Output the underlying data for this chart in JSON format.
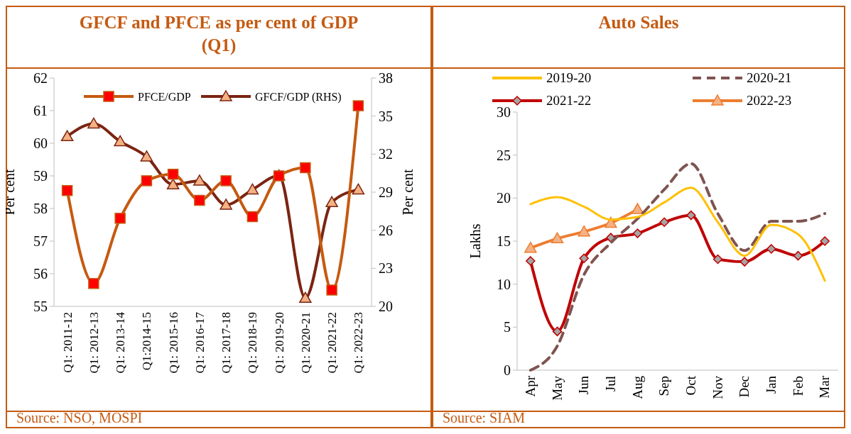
{
  "chart_data": [
    {
      "type": "line",
      "title": "GFCF and PFCE as per cent of GDP (Q1)",
      "ylabel": "Per cent",
      "y2label": "Per cent",
      "categories": [
        "Q1: 2011-12",
        "Q1: 2012-13",
        "Q1: 2013-14",
        "Q1:2014-15",
        "Q1: 2015-16",
        "Q1: 2016-17",
        "Q1: 2017-18",
        "Q1: 2018-19",
        "Q1: 2019-20",
        "Q1: 2020-21",
        "Q1: 2021-22",
        "Q1: 2022-23"
      ],
      "series": [
        {
          "name": "PFCE/GDP",
          "color": "#c55a11",
          "marker": "square",
          "values": [
            58.55,
            55.7,
            57.7,
            58.85,
            59.05,
            58.25,
            58.85,
            57.75,
            59.0,
            59.25,
            55.5,
            61.15
          ]
        },
        {
          "name": "GFCF/GDP (RHS)",
          "color": "#7b2412",
          "marker": "triangle",
          "axis": "y2",
          "values": [
            33.4,
            34.4,
            33.0,
            31.8,
            29.6,
            29.9,
            28.0,
            29.2,
            30.3,
            20.65,
            28.2,
            29.2
          ]
        }
      ],
      "ylim": [
        55,
        62
      ],
      "yticks": [
        55,
        56,
        57,
        58,
        59,
        60,
        61,
        62
      ],
      "y2lim": [
        20,
        38
      ],
      "y2ticks": [
        20,
        23,
        26,
        29,
        32,
        35,
        38
      ],
      "legend": "top",
      "grid": false,
      "annotations": [
        "Source: NSO, MOSPI"
      ]
    },
    {
      "type": "line",
      "title": "Auto Sales",
      "ylabel": "Lakhs",
      "categories": [
        "Apr",
        "May",
        "Jun",
        "Jul",
        "Aug",
        "Sep",
        "Oct",
        "Nov",
        "Dec",
        "Jan",
        "Feb",
        "Mar"
      ],
      "series": [
        {
          "name": "2019-20",
          "color": "#ffc000",
          "marker": "none",
          "line_style": "solid",
          "values": [
            19.3,
            20.1,
            19.0,
            17.5,
            17.8,
            19.5,
            21.2,
            17.2,
            13.3,
            16.9,
            15.8,
            10.4
          ]
        },
        {
          "name": "2020-21",
          "color": "#7f5451",
          "marker": "none",
          "line_style": "dashed",
          "values": [
            0,
            2.8,
            11.1,
            14.8,
            17.6,
            21.0,
            24.0,
            18.2,
            13.9,
            17.3,
            17.3,
            18.2
          ]
        },
        {
          "name": "2021-22",
          "color": "#c00000",
          "marker": "diamond",
          "line_style": "solid",
          "values": [
            12.7,
            4.5,
            13.0,
            15.4,
            15.9,
            17.2,
            18.0,
            12.9,
            12.6,
            14.1,
            13.3,
            15.0
          ]
        },
        {
          "name": "2022-23",
          "color": "#ed7d31",
          "marker": "triangle",
          "line_style": "solid",
          "values": [
            14.2,
            15.3,
            16.1,
            17.1,
            18.7,
            null,
            null,
            null,
            null,
            null,
            null,
            null
          ]
        }
      ],
      "ylim": [
        0,
        30
      ],
      "yticks": [
        0,
        5,
        10,
        15,
        20,
        25,
        30
      ],
      "legend": "top",
      "grid": false,
      "annotations": [
        "Source: SIAM"
      ]
    }
  ]
}
